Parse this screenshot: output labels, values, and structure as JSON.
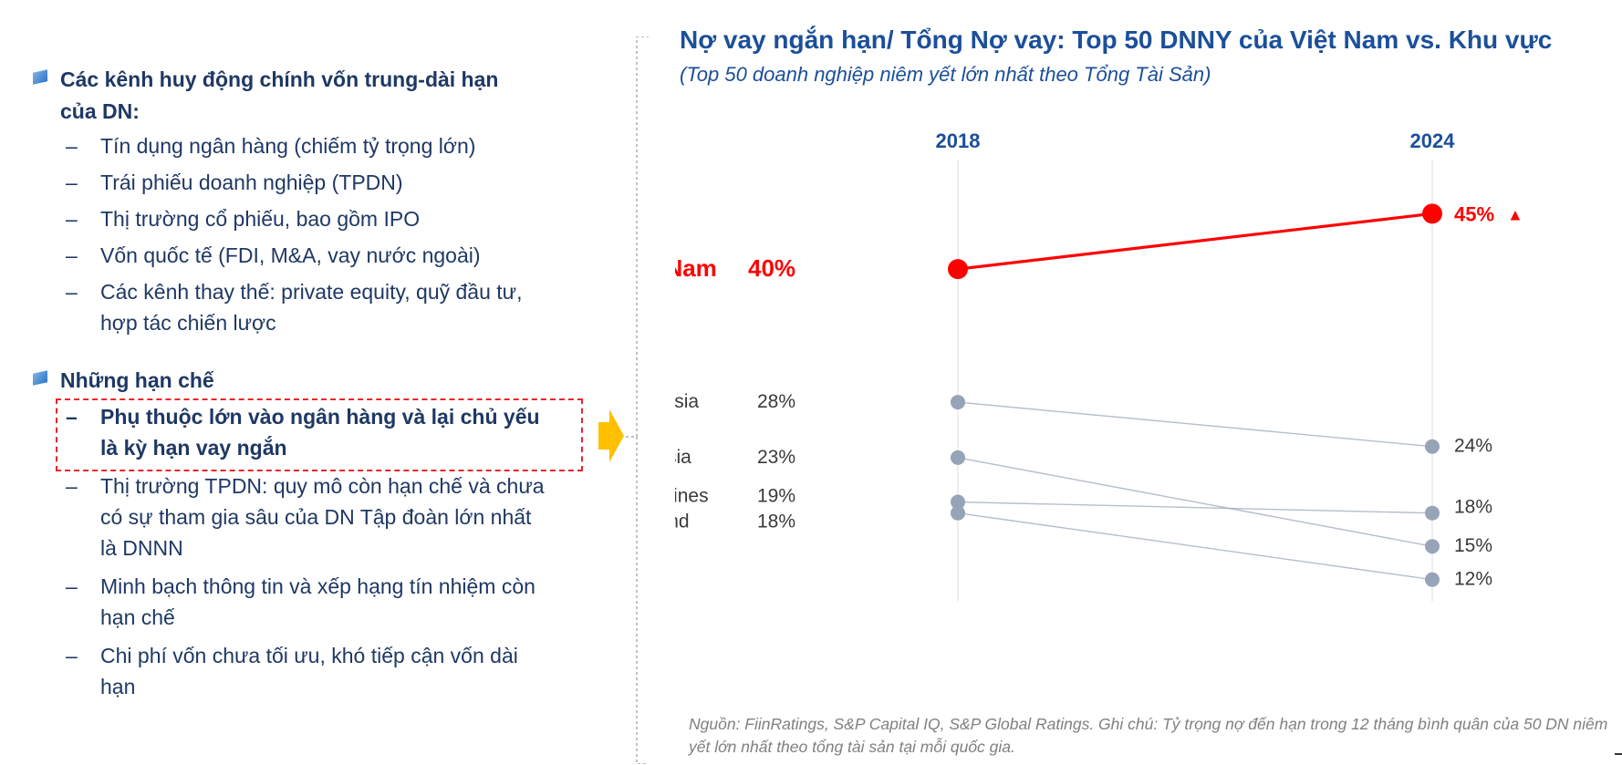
{
  "left": {
    "section1": {
      "title": "Các kênh huy động chính vốn trung-dài hạn của DN:",
      "items": [
        "Tín dụng ngân hàng (chiếm tỷ trọng lớn)",
        "Trái phiếu doanh nghiệp (TPDN)",
        "Thị trường cổ phiếu, bao gồm IPO",
        "Vốn quốc tế (FDI, M&A, vay nước ngoài)",
        "Các kênh thay thế: private equity, quỹ đầu tư, hợp tác chiến lược"
      ]
    },
    "section2": {
      "title": "Những hạn chế",
      "items": [
        "Phụ thuộc lớn vào ngân hàng và lại chủ yếu là kỳ hạn vay ngắn",
        "Thị trường TPDN: quy mô còn hạn chế và chưa có sự tham gia sâu của DN Tập đoàn lớn nhất là DNNN",
        "Minh bạch thông tin và xếp hạng tín nhiệm còn hạn chế",
        "Chi phí vốn chưa tối ưu, khó tiếp cận vốn dài hạn"
      ]
    }
  },
  "chart_data": {
    "type": "line",
    "title": "Nợ vay ngắn hạn/ Tổng Nợ vay: Top 50 DNNY của Việt Nam vs. Khu vực",
    "subtitle": "(Top 50 doanh nghiệp niêm yết lớn nhất theo Tổng Tài Sản)",
    "x": [
      "2018",
      "2024"
    ],
    "ylim": [
      10,
      47
    ],
    "series": [
      {
        "name": "Việt Nam",
        "values": [
          40,
          45
        ],
        "labels": [
          "40%",
          "45%"
        ],
        "color": "#ff0000",
        "highlight": true,
        "trend_marker": "▲"
      },
      {
        "name": "Indonesia",
        "values": [
          28,
          24
        ],
        "labels": [
          "28%",
          "24%"
        ],
        "color": "#97a3b6"
      },
      {
        "name": "Malaysia",
        "values": [
          23,
          15
        ],
        "labels": [
          "23%",
          "15%"
        ],
        "color": "#97a3b6"
      },
      {
        "name": "Philippines",
        "values": [
          19,
          18
        ],
        "labels": [
          "19%",
          "18%"
        ],
        "color": "#97a3b6"
      },
      {
        "name": "Thailand",
        "values": [
          18,
          12
        ],
        "labels": [
          "18%",
          "12%"
        ],
        "color": "#97a3b6"
      }
    ],
    "footnote": "Nguồn: FiinRatings, S&P Capital IQ, S&P Global Ratings. Ghi chú: Tỷ trọng nợ đến hạn trong 12 tháng bình quân của 50 DN niêm yết lớn nhất theo tổng tài sản tại mỗi quốc gia."
  },
  "colors": {
    "title": "#1b4f9a",
    "text": "#1f3864",
    "highlight": "#ff0000",
    "muted": "#97a3b6",
    "gridline": "#e6e9ee",
    "arrow": "#ffc000"
  }
}
